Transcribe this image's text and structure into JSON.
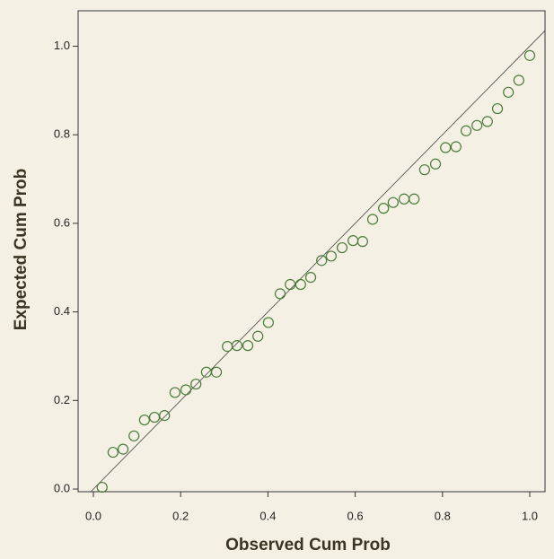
{
  "chart_data": {
    "type": "scatter",
    "x_label": "Observed Cum Prob",
    "y_label": "Expected Cum Prob",
    "x": [
      0.02,
      0.045,
      0.068,
      0.093,
      0.117,
      0.14,
      0.163,
      0.187,
      0.212,
      0.235,
      0.259,
      0.282,
      0.307,
      0.329,
      0.354,
      0.377,
      0.401,
      0.428,
      0.451,
      0.475,
      0.498,
      0.523,
      0.545,
      0.57,
      0.595,
      0.617,
      0.64,
      0.665,
      0.687,
      0.712,
      0.735,
      0.759,
      0.784,
      0.807,
      0.831,
      0.854,
      0.879,
      0.903,
      0.926,
      0.951,
      0.975,
      1.0
    ],
    "values": [
      0.004,
      0.083,
      0.09,
      0.12,
      0.156,
      0.162,
      0.166,
      0.218,
      0.224,
      0.237,
      0.264,
      0.264,
      0.322,
      0.324,
      0.324,
      0.345,
      0.376,
      0.441,
      0.462,
      0.462,
      0.478,
      0.516,
      0.526,
      0.545,
      0.561,
      0.559,
      0.609,
      0.634,
      0.647,
      0.655,
      0.655,
      0.721,
      0.734,
      0.771,
      0.773,
      0.809,
      0.821,
      0.83,
      0.859,
      0.896,
      0.923,
      0.979
    ],
    "color": "#4a7a3a",
    "diagonal": true,
    "xlim": [
      -0.035,
      1.035
    ],
    "ylim": [
      -0.006,
      1.08
    ],
    "xticks": [
      {
        "value": 0,
        "label": "0.0"
      },
      {
        "value": 0.2,
        "label": "0.2"
      },
      {
        "value": 0.4,
        "label": "0.4"
      },
      {
        "value": 0.6,
        "label": "0.6"
      },
      {
        "value": 0.8,
        "label": "0.8"
      },
      {
        "value": 1,
        "label": "1.0"
      }
    ],
    "yticks": [
      {
        "value": 0,
        "label": "0.0"
      },
      {
        "value": 0.2,
        "label": "0.2"
      },
      {
        "value": 0.4,
        "label": "0.4"
      },
      {
        "value": 0.6,
        "label": "0.6"
      },
      {
        "value": 0.8,
        "label": "0.8"
      },
      {
        "value": 1,
        "label": "1.0"
      }
    ]
  }
}
